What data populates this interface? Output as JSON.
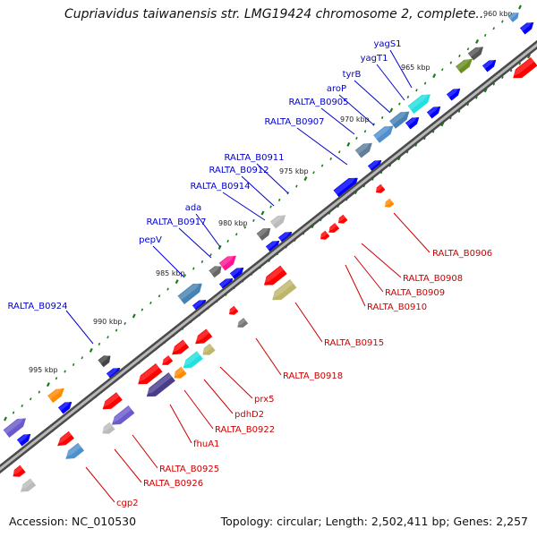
{
  "title": "Cupriavidus taiwanensis str. LMG19424 chromosome 2, complete...",
  "footer": {
    "accession": "Accession: NC_010530",
    "topology": "Topology: circular; Length: 2,502,411 bp; Genes: 2,257"
  },
  "colors": {
    "forward_gene": "#0000ff",
    "reverse_gene": "#ff0000",
    "forward_label": "#0000cc",
    "reverse_label": "#cc0000",
    "backbone": "#666666",
    "tick": "#1a7a1a"
  },
  "tick_labels": [
    {
      "label": "960 kbp"
    },
    {
      "label": "965 kbp"
    },
    {
      "label": "970 kbp"
    },
    {
      "label": "975 kbp"
    },
    {
      "label": "980 kbp"
    },
    {
      "label": "985 kbp"
    },
    {
      "label": "990 kbp"
    },
    {
      "label": "995 kbp"
    }
  ],
  "forward_genes": [
    {
      "label": "yagS1"
    },
    {
      "label": "yagT1"
    },
    {
      "label": "tyrB"
    },
    {
      "label": "aroP"
    },
    {
      "label": "RALTA_B0905"
    },
    {
      "label": "RALTA_B0907"
    },
    {
      "label": "RALTA_B0911"
    },
    {
      "label": "RALTA_B0912"
    },
    {
      "label": "RALTA_B0914"
    },
    {
      "label": "ada"
    },
    {
      "label": "RALTA_B0917"
    },
    {
      "label": "pepV"
    },
    {
      "label": "RALTA_B0924"
    }
  ],
  "reverse_genes": [
    {
      "label": "RALTA_B0906"
    },
    {
      "label": "RALTA_B0908"
    },
    {
      "label": "RALTA_B0909"
    },
    {
      "label": "RALTA_B0910"
    },
    {
      "label": "RALTA_B0915"
    },
    {
      "label": "RALTA_B0918"
    },
    {
      "label": "prx5"
    },
    {
      "label": "pdhD2"
    },
    {
      "label": "RALTA_B0922"
    },
    {
      "label": "fhuA1"
    },
    {
      "label": "RALTA_B0925"
    },
    {
      "label": "RALTA_B0926"
    },
    {
      "label": "cgp2"
    }
  ]
}
